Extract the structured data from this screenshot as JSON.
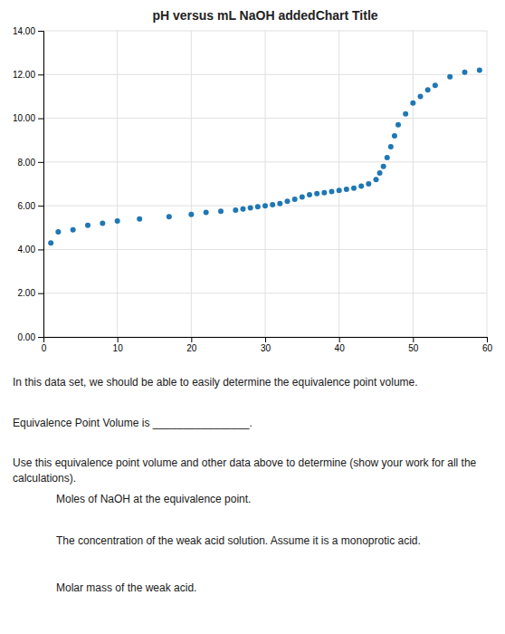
{
  "chart_data": {
    "type": "scatter",
    "title": "pH versus mL NaOH addedChart Title",
    "x": [
      1,
      2,
      4,
      6,
      8,
      10,
      13,
      17,
      20,
      22,
      24,
      26,
      27,
      28,
      29,
      30,
      31,
      32,
      33,
      34,
      35,
      36,
      37,
      38,
      39,
      40,
      41,
      42,
      43,
      44,
      45,
      45.5,
      46,
      46.5,
      47,
      47.5,
      48,
      49,
      50,
      51,
      52,
      53,
      55,
      57,
      59
    ],
    "values": [
      4.3,
      4.8,
      4.9,
      5.1,
      5.2,
      5.3,
      5.4,
      5.5,
      5.6,
      5.7,
      5.75,
      5.8,
      5.85,
      5.9,
      5.95,
      6.0,
      6.05,
      6.1,
      6.2,
      6.3,
      6.4,
      6.5,
      6.55,
      6.6,
      6.65,
      6.7,
      6.75,
      6.8,
      6.9,
      7.0,
      7.2,
      7.5,
      7.8,
      8.2,
      8.7,
      9.2,
      9.7,
      10.2,
      10.7,
      11.0,
      11.3,
      11.5,
      11.9,
      12.1,
      12.2
    ],
    "xlim": [
      0,
      60
    ],
    "ylim": [
      0.0,
      14.0
    ],
    "xticks": [
      0,
      10,
      20,
      30,
      40,
      50,
      60
    ],
    "yticks": [
      {
        "value": 0.0,
        "label": "0.00"
      },
      {
        "value": 2.0,
        "label": "2.00"
      },
      {
        "value": 4.0,
        "label": "4.00"
      },
      {
        "value": 6.0,
        "label": "6.00"
      },
      {
        "value": 8.0,
        "label": "8.00"
      },
      {
        "value": 10.0,
        "label": "10.00"
      },
      {
        "value": 12.0,
        "label": "12.00"
      },
      {
        "value": 14.0,
        "label": "14.00"
      }
    ],
    "grid": true,
    "annotations": [
      "In this data set, we should be able to easily determine the equivalence point volume.",
      "Equivalence Point Volume is ________________.",
      "Use this equivalence point volume and other data above to determine (show your work for all the",
      "calculations).",
      "Moles of NaOH at the equivalence point.",
      "The concentration of the weak acid solution.  Assume it is a monoprotic acid.",
      "Molar mass of the weak acid."
    ]
  }
}
